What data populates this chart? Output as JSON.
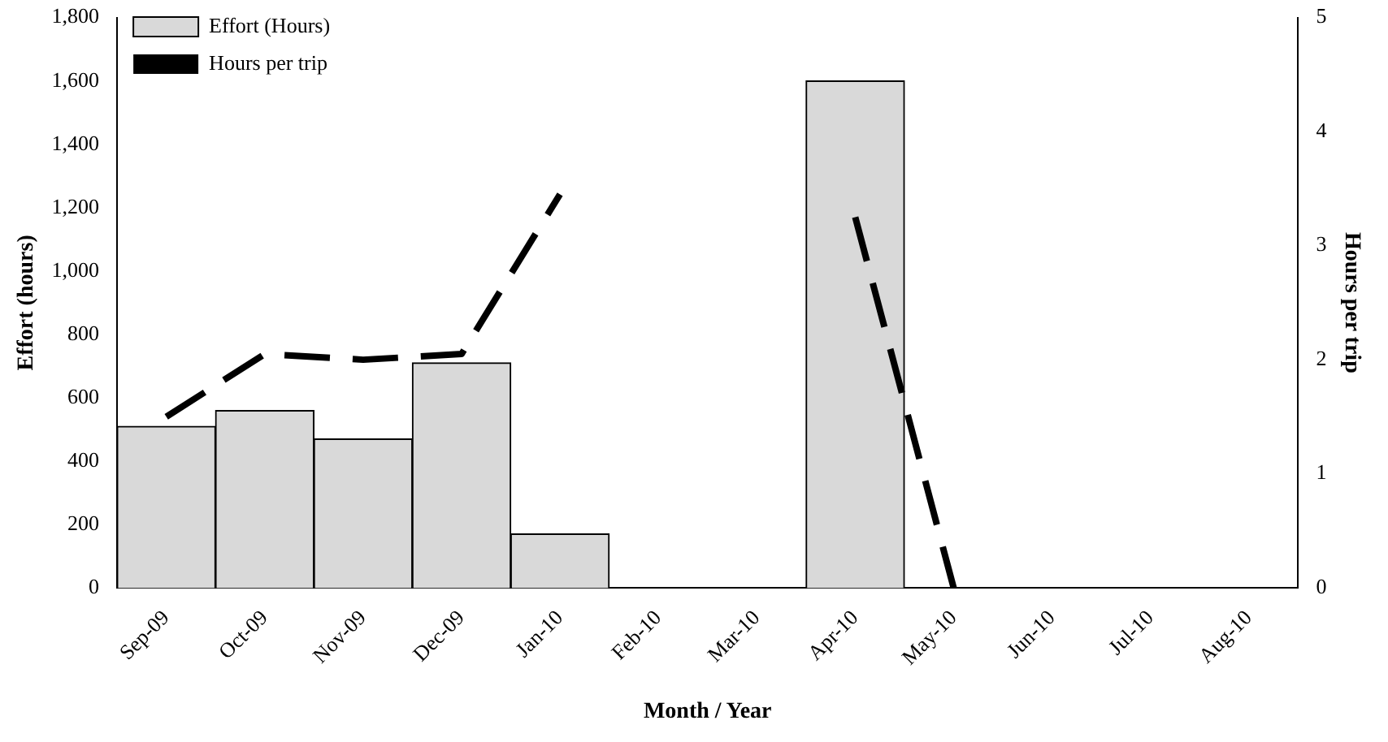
{
  "chart_data": {
    "type": "bar",
    "xlabel": "Month / Year",
    "ylabel": "Effort (hours)",
    "y2label": "Hours per trip",
    "categories": [
      "Sep-09",
      "Oct-09",
      "Nov-09",
      "Dec-09",
      "Jan-10",
      "Feb-10",
      "Mar-10",
      "Apr-10",
      "May-10",
      "Jun-10",
      "Jul-10",
      "Aug-10"
    ],
    "series": [
      {
        "name": "Effort (Hours)",
        "color": "#d9d9d9",
        "values": [
          510,
          560,
          470,
          710,
          170,
          0,
          0,
          1600,
          0,
          0,
          0,
          0
        ]
      },
      {
        "name": "Hours per trip",
        "type": "line",
        "axis": "y2",
        "color": "#000000",
        "line_style": "dashed",
        "marker": "none",
        "values": [
          1.5,
          2.05,
          2.0,
          2.05,
          3.45,
          null,
          null,
          3.25,
          0,
          null,
          null,
          null
        ]
      }
    ],
    "ylim": [
      0,
      1800
    ],
    "yticks": [
      {
        "value": 0,
        "label": "0"
      },
      {
        "value": 200,
        "label": "200"
      },
      {
        "value": 400,
        "label": "400"
      },
      {
        "value": 600,
        "label": "600"
      },
      {
        "value": 800,
        "label": "800"
      },
      {
        "value": 1000,
        "label": "1,000"
      },
      {
        "value": 1200,
        "label": "1,200"
      },
      {
        "value": 1400,
        "label": "1,400"
      },
      {
        "value": 1600,
        "label": "1,600"
      },
      {
        "value": 1800,
        "label": "1,800"
      }
    ],
    "y2lim": [
      0,
      5
    ],
    "y2ticks": [
      0,
      1,
      2,
      3,
      4,
      5
    ],
    "grid": false,
    "legend": "top left"
  }
}
